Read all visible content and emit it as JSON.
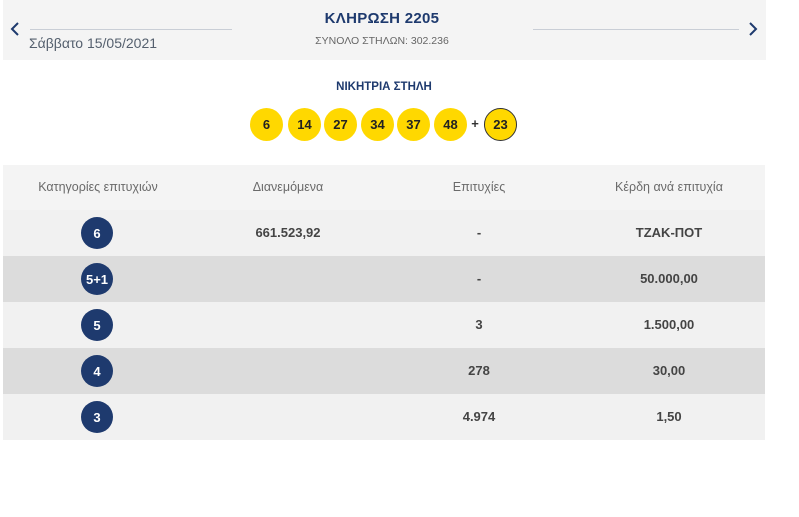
{
  "header": {
    "title": "ΚΛΗΡΩΣΗ 2205",
    "date": "Σάββατο 15/05/2021",
    "total_columns": "ΣΥΝΟΛΟ ΣΤΗΛΩΝ: 302.236"
  },
  "winning": {
    "label": "ΝΙΚΗΤΡΙΑ ΣΤΗΛΗ",
    "numbers": [
      "6",
      "14",
      "27",
      "34",
      "37",
      "48"
    ],
    "plus": "+",
    "bonus": "23"
  },
  "table": {
    "headers": [
      "Κατηγορίες επιτυχιών",
      "Διανεμόμενα",
      "Επιτυχίες",
      "Κέρδη ανά επιτυχία"
    ],
    "rows": [
      {
        "category": "6",
        "distributed": "661.523,92",
        "winners": "-",
        "prize": "ΤΖΑΚ-ΠΟΤ"
      },
      {
        "category": "5+1",
        "distributed": "",
        "winners": "-",
        "prize": "50.000,00"
      },
      {
        "category": "5",
        "distributed": "",
        "winners": "3",
        "prize": "1.500,00"
      },
      {
        "category": "4",
        "distributed": "",
        "winners": "278",
        "prize": "30,00"
      },
      {
        "category": "3",
        "distributed": "",
        "winners": "4.974",
        "prize": "1,50"
      }
    ]
  },
  "colors": {
    "navy": "#1e3a6e",
    "ball_yellow": "#ffd800",
    "row_light": "#f1f1f1",
    "row_dark": "#dcdcdc"
  }
}
